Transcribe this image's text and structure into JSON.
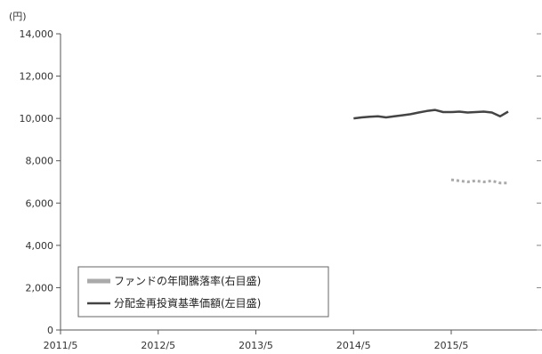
{
  "chart_data": {
    "type": "line",
    "y_unit": "(円)",
    "y_left": {
      "ylim": [
        0,
        14000
      ],
      "ticks": [
        "14,000",
        "12,000",
        "10,000",
        "8,000",
        "6,000",
        "4,000",
        "2,000",
        "0"
      ]
    },
    "x_ticks": [
      "2011/5",
      "2012/5",
      "2013/5",
      "2014/5",
      "2015/5"
    ],
    "grid": false,
    "legend_position": "bottom-left",
    "series": [
      {
        "name": "ファンドの年間騰落率(右目盛)",
        "axis": "right",
        "style": "dotted",
        "color": "#aaaaaa",
        "x": [
          "2015/5",
          "2015/6",
          "2015/7",
          "2015/8",
          "2015/9",
          "2015/10",
          "2015/11",
          "2015/12"
        ],
        "plotted_level_left_scale": [
          7100,
          7050,
          7000,
          7050,
          7000,
          7050,
          6950,
          6950
        ]
      },
      {
        "name": "分配金再投資基準価額(左目盛)",
        "axis": "left",
        "style": "solid",
        "color": "#444444",
        "x": [
          "2014/5",
          "2014/6",
          "2014/7",
          "2014/8",
          "2014/9",
          "2014/10",
          "2014/11",
          "2014/12",
          "2015/1",
          "2015/2",
          "2015/3",
          "2015/4",
          "2015/5",
          "2015/6",
          "2015/7",
          "2015/8",
          "2015/9",
          "2015/10",
          "2015/11",
          "2015/12"
        ],
        "values": [
          10000,
          10050,
          10080,
          10100,
          10050,
          10100,
          10150,
          10200,
          10280,
          10350,
          10400,
          10300,
          10300,
          10320,
          10280,
          10300,
          10320,
          10280,
          10100,
          10320
        ]
      }
    ]
  }
}
